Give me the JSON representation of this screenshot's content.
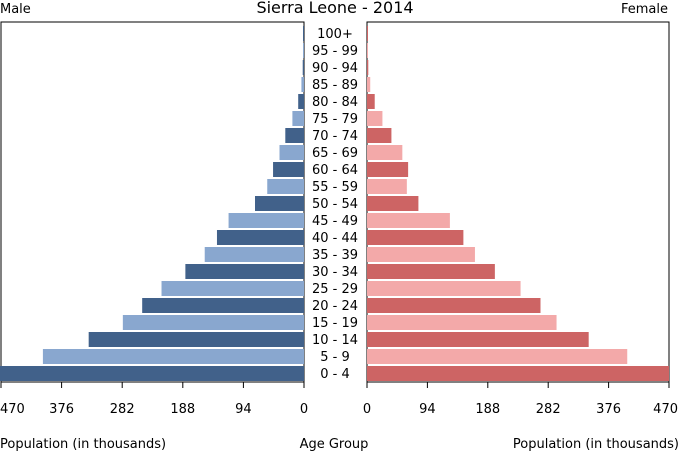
{
  "chart_data": {
    "type": "bar",
    "title": "Sierra Leone - 2014",
    "left_label": "Male",
    "right_label": "Female",
    "categories": [
      "0 - 4",
      "5 - 9",
      "10 - 14",
      "15 - 19",
      "20 - 24",
      "25 - 29",
      "30 - 34",
      "35 - 39",
      "40 - 44",
      "45 - 49",
      "50 - 54",
      "55 - 59",
      "60 - 64",
      "65 - 69",
      "70 - 74",
      "75 - 79",
      "80 - 84",
      "85 - 89",
      "90 - 94",
      "95 - 99",
      "100+"
    ],
    "series": [
      {
        "name": "Male",
        "values": [
          472,
          405,
          334,
          281,
          251,
          221,
          184,
          154,
          135,
          117,
          76,
          57,
          48,
          38,
          29,
          18,
          9,
          4,
          2,
          1,
          0.5
        ]
      },
      {
        "name": "Female",
        "values": [
          470,
          405,
          345,
          295,
          270,
          239,
          199,
          168,
          150,
          129,
          80,
          62,
          64,
          55,
          38,
          24,
          12,
          5,
          2,
          1,
          0.5
        ]
      }
    ],
    "xlim": [
      0,
      470
    ],
    "ticks": [
      470,
      376,
      282,
      188,
      94,
      0
    ],
    "tick_labels_left": [
      "470",
      "376",
      "282",
      "188",
      "94",
      "0"
    ],
    "tick_labels_right": [
      "0",
      "94",
      "188",
      "282",
      "376",
      "470"
    ],
    "xlabel_left": "Population (in thousands)",
    "xlabel_center": "Age Group",
    "xlabel_right": "Population (in thousands)",
    "colors": {
      "male_dark": "#41618a",
      "male_light": "#89a7cf",
      "female_dark": "#cd6464",
      "female_light": "#f3a9a9"
    }
  }
}
